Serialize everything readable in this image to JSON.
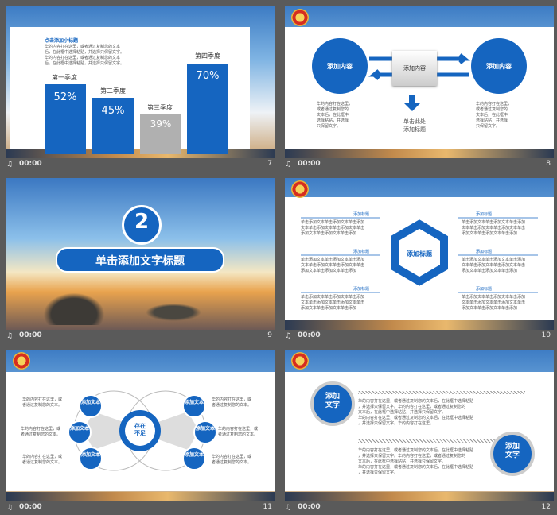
{
  "footer": {
    "time": "00:00"
  },
  "slides": [
    {
      "number": "7",
      "subtitle": "点击添加小标题",
      "body": [
        "华的内容打在这里，或者通过复制您的文本",
        "后，在此框中选择粘贴，并选择只保留文字。",
        "华的内容打在这里，或者通过复制您的文本",
        "后，在此框中选择粘贴，并选择只保留文字。"
      ],
      "bars": [
        {
          "label": "第一季度",
          "value": "52%"
        },
        {
          "label": "第二季度",
          "value": "45%"
        },
        {
          "label": "第三季度",
          "value": "39%"
        },
        {
          "label": "第四季度",
          "value": "70%"
        }
      ]
    },
    {
      "number": "8",
      "left_circle": "添加内容",
      "center_box": "添加内容",
      "right_circle": "添加内容",
      "left_text": [
        "华的内容打在这里，",
        "或者通过复制您的",
        "文本后，在此框中",
        "选择粘贴，并选择",
        "只保留文字。"
      ],
      "right_text": [
        "华的内容打在这里，",
        "或者通过复制您的",
        "文本后，在此框中",
        "选择粘贴，并选择",
        "只保留文字。"
      ],
      "bottom_label": [
        "单击此处",
        "添加标题"
      ]
    },
    {
      "number": "9",
      "chapter": "2",
      "title": "单击添加文字标题"
    },
    {
      "number": "10",
      "center": "添加标题",
      "items": [
        {
          "title": "添加标题",
          "text": [
            "单击添加文本单击添加文本单击添加",
            "文本单击添加文本单击添加文本单击",
            "添加文本单击添加文本单击添加"
          ]
        },
        {
          "title": "添加标题",
          "text": [
            "单击添加文本单击添加文本单击添加",
            "文本单击添加文本单击添加文本单击",
            "添加文本单击添加文本单击添加"
          ]
        },
        {
          "title": "添加标题",
          "text": [
            "单击添加文本单击添加文本单击添加",
            "文本单击添加文本单击添加文本单击",
            "添加文本单击添加文本单击添加"
          ]
        },
        {
          "title": "添加标题",
          "text": [
            "单击添加文本单击添加文本单击添加",
            "文本单击添加文本单击添加文本单击",
            "添加文本单击添加文本单击添加"
          ]
        },
        {
          "title": "添加标题",
          "text": [
            "单击添加文本单击添加文本单击添加",
            "文本单击添加文本单击添加文本单击",
            "添加文本单击添加文本单击添加"
          ]
        },
        {
          "title": "添加标题",
          "text": [
            "单击添加文本单击添加文本单击添加",
            "文本单击添加文本单击添加文本单击",
            "添加文本单击添加文本单击添加"
          ]
        }
      ]
    },
    {
      "number": "11",
      "center": [
        "存在",
        "不足"
      ],
      "nodes": [
        "添加文本",
        "添加文本",
        "添加文本",
        "添加文本",
        "添加文本",
        "添加文本"
      ],
      "left_text": [
        [
          "华的内容打在这里，或",
          "者通过复制您的文本。"
        ],
        [
          "华的内容打在这里，或",
          "者通过复制您的文本。"
        ],
        [
          "华的内容打在这里，或",
          "者通过复制您的文本。"
        ]
      ],
      "right_text": [
        [
          "华的内容打在这里，或",
          "者通过复制您的文本。"
        ],
        [
          "华的内容打在这里，或",
          "者通过复制您的文本。"
        ],
        [
          "华的内容打在这里，或",
          "者通过复制您的文本。"
        ]
      ]
    },
    {
      "number": "12",
      "top_circle": [
        "添加",
        "文字"
      ],
      "bottom_circle": [
        "添加",
        "文字"
      ],
      "para1": [
        "华的内容打在这里，或者通过复制您的文本后，在此框中选择粘贴",
        "，并选择只保留文字。华的内容打在这里，或者通过复制您的",
        "文本后，在此框中选择粘贴，并选择只保留文字。",
        "华的内容打在这里，或者通过复制您的文本后，在此框中选择粘贴",
        "，并选择只保留文字。华的内容打在这里。"
      ],
      "para2": [
        "华的内容打在这里，或者通过复制您的文本后，在此框中选择粘贴",
        "，并选择只保留文字。华的内容打在这里，或者通过复制您的",
        "文本后，在此框中选择粘贴，并选择只保留文字。",
        "华的内容打在这里，或者通过复制您的文本后，在此框中选择粘贴",
        "，并选择只保留文字。"
      ]
    }
  ]
}
